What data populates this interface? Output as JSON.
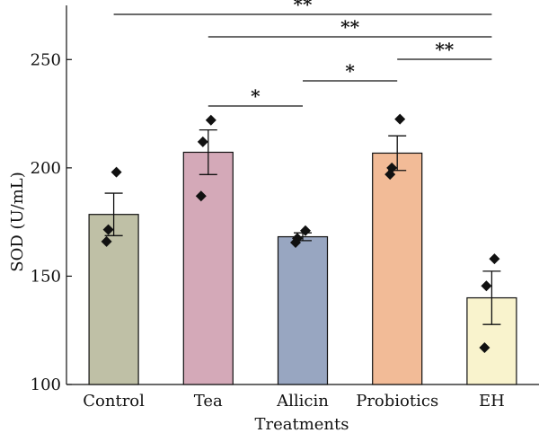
{
  "chart_data": {
    "type": "bar",
    "title": "",
    "xlabel": "Treatments",
    "ylabel": "SOD (U/mL)",
    "ylim": [
      100,
      275
    ],
    "yticks": [
      100,
      150,
      200,
      250
    ],
    "grid": false,
    "categories": [
      "Control",
      "Tea",
      "Allicin",
      "Probiotics",
      "EH"
    ],
    "values": [
      178.5,
      207.2,
      168.2,
      206.8,
      140.0
    ],
    "errors": [
      9.8,
      10.3,
      1.8,
      8.0,
      12.3
    ],
    "points": [
      [
        198,
        171.5,
        166
      ],
      [
        222,
        212,
        187
      ],
      [
        171,
        167.5,
        165.5
      ],
      [
        222.5,
        200,
        197
      ],
      [
        158,
        145.5,
        117
      ]
    ],
    "colors": [
      "#bfc0a6",
      "#d4a9b8",
      "#98a6c1",
      "#f2bb97",
      "#f9f3cd"
    ],
    "significance": [
      {
        "from": "Control",
        "to": "EH",
        "label": "**"
      },
      {
        "from": "Tea",
        "to": "EH",
        "label": "**"
      },
      {
        "from": "Probiotics",
        "to": "EH",
        "label": "**"
      },
      {
        "from": "Allicin",
        "to": "Probiotics",
        "label": "*"
      },
      {
        "from": "Tea",
        "to": "Allicin",
        "label": "*"
      }
    ]
  }
}
